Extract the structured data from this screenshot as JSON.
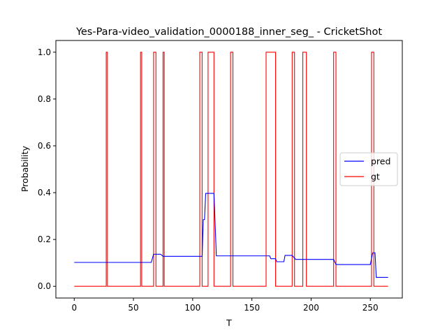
{
  "chart_data": {
    "type": "line",
    "title": "Yes-Para-video_validation_0000188_inner_seg_ - CricketShot",
    "xlabel": "T",
    "ylabel": "Probability",
    "xlim": [
      -15.5,
      277
    ],
    "ylim": [
      -0.05,
      1.05
    ],
    "xticks": [
      0,
      50,
      100,
      150,
      200,
      250
    ],
    "yticks": [
      0.0,
      0.2,
      0.4,
      0.6,
      0.8,
      1.0
    ],
    "xtick_labels": [
      "0",
      "50",
      "100",
      "150",
      "200",
      "250"
    ],
    "ytick_labels": [
      "0.0",
      "0.2",
      "0.4",
      "0.6",
      "0.8",
      "1.0"
    ],
    "grid": false,
    "legend_position": "center-right",
    "series": [
      {
        "name": "pred",
        "color": "#0000ff",
        "points": [
          [
            0,
            0.102
          ],
          [
            65,
            0.102
          ],
          [
            67,
            0.137
          ],
          [
            73,
            0.137
          ],
          [
            75,
            0.128
          ],
          [
            108,
            0.128
          ],
          [
            109,
            0.285
          ],
          [
            110,
            0.285
          ],
          [
            111,
            0.397
          ],
          [
            118,
            0.397
          ],
          [
            120,
            0.13
          ],
          [
            162,
            0.13
          ],
          [
            165,
            0.13
          ],
          [
            166,
            0.118
          ],
          [
            170,
            0.118
          ],
          [
            171,
            0.105
          ],
          [
            177,
            0.105
          ],
          [
            178,
            0.132
          ],
          [
            184,
            0.132
          ],
          [
            187,
            0.115
          ],
          [
            219,
            0.115
          ],
          [
            221,
            0.093
          ],
          [
            250,
            0.093
          ],
          [
            252,
            0.143
          ],
          [
            254,
            0.143
          ],
          [
            255,
            0.038
          ],
          [
            265,
            0.038
          ]
        ]
      },
      {
        "name": "gt",
        "color": "#ff0000",
        "points": [
          [
            0,
            0
          ],
          [
            27,
            0
          ],
          [
            27,
            1
          ],
          [
            28,
            1
          ],
          [
            28,
            0
          ],
          [
            56,
            0
          ],
          [
            56,
            1
          ],
          [
            57,
            1
          ],
          [
            57,
            0
          ],
          [
            67,
            0
          ],
          [
            67,
            1
          ],
          [
            69,
            1
          ],
          [
            69,
            0
          ],
          [
            75,
            0
          ],
          [
            75,
            1
          ],
          [
            76,
            1
          ],
          [
            76,
            0
          ],
          [
            106,
            0
          ],
          [
            106,
            1
          ],
          [
            108,
            1
          ],
          [
            108,
            0
          ],
          [
            113,
            0
          ],
          [
            113,
            1
          ],
          [
            118,
            1
          ],
          [
            118,
            0
          ],
          [
            132,
            0
          ],
          [
            132,
            1
          ],
          [
            134,
            1
          ],
          [
            134,
            0
          ],
          [
            162,
            0
          ],
          [
            162,
            1
          ],
          [
            170,
            1
          ],
          [
            170,
            0
          ],
          [
            184,
            0
          ],
          [
            184,
            1
          ],
          [
            186,
            1
          ],
          [
            186,
            0
          ],
          [
            193,
            0
          ],
          [
            193,
            1
          ],
          [
            196,
            1
          ],
          [
            196,
            0
          ],
          [
            219,
            0
          ],
          [
            219,
            1
          ],
          [
            221,
            1
          ],
          [
            221,
            0
          ],
          [
            251,
            0
          ],
          [
            251,
            1
          ],
          [
            253,
            1
          ],
          [
            253,
            0
          ],
          [
            265,
            0
          ]
        ]
      }
    ]
  }
}
